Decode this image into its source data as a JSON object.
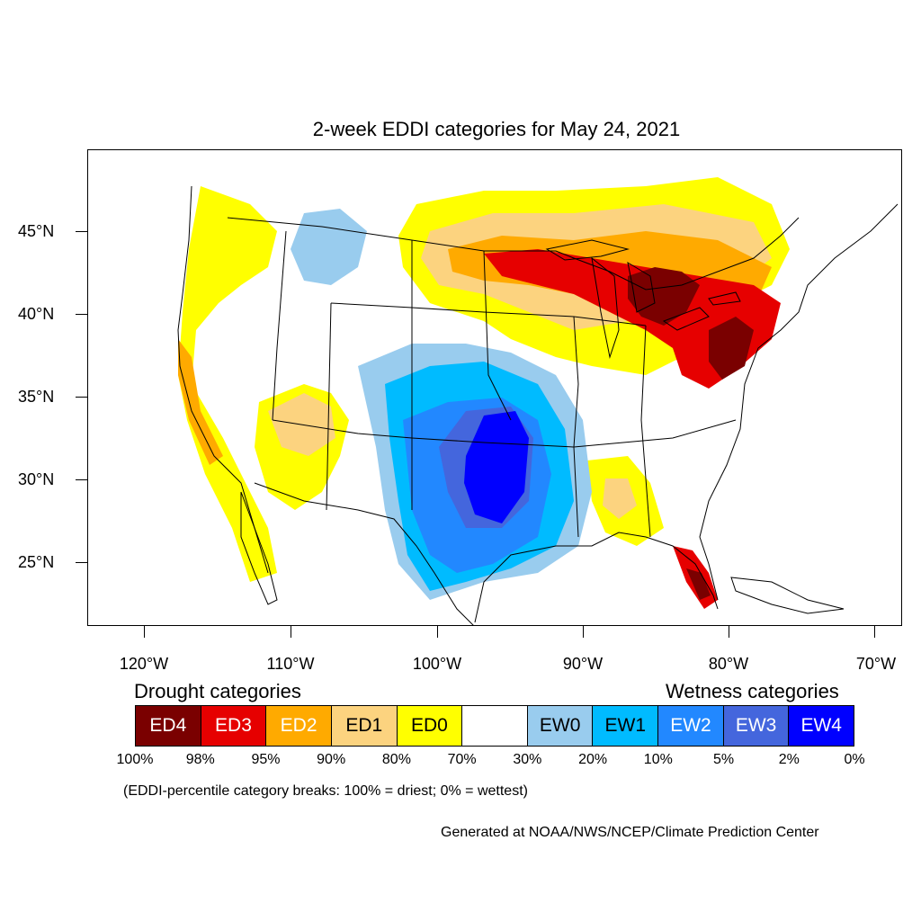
{
  "title": "2-week EDDI categories for May 24, 2021",
  "axes": {
    "lat_labels": [
      "45°N",
      "40°N",
      "35°N",
      "30°N",
      "25°N"
    ],
    "lon_labels": [
      "120°W",
      "110°W",
      "100°W",
      "90°W",
      "80°W",
      "70°W"
    ]
  },
  "legend": {
    "drought_heading": "Drought categories",
    "wetness_heading": "Wetness categories",
    "categories": [
      {
        "label": "ED4",
        "color": "#7a0000",
        "text_color": "#ffffff"
      },
      {
        "label": "ED3",
        "color": "#e60000",
        "text_color": "#ffffff"
      },
      {
        "label": "ED2",
        "color": "#ffaa00",
        "text_color": "#ffffff"
      },
      {
        "label": "ED1",
        "color": "#fcd37f",
        "text_color": "#000000"
      },
      {
        "label": "ED0",
        "color": "#ffff00",
        "text_color": "#000000"
      },
      {
        "label": "",
        "color": "#ffffff",
        "text_color": "#000000"
      },
      {
        "label": "EW0",
        "color": "#99ccee",
        "text_color": "#000000"
      },
      {
        "label": "EW1",
        "color": "#00bbff",
        "text_color": "#000000"
      },
      {
        "label": "EW2",
        "color": "#2288ff",
        "text_color": "#ffffff"
      },
      {
        "label": "EW3",
        "color": "#4466dd",
        "text_color": "#ffffff"
      },
      {
        "label": "EW4",
        "color": "#0000ff",
        "text_color": "#ffffff"
      }
    ],
    "breaks": [
      "100%",
      "98%",
      "95%",
      "90%",
      "80%",
      "70%",
      "30%",
      "20%",
      "10%",
      "5%",
      "2%",
      "0%"
    ]
  },
  "note": "(EDDI-percentile category breaks: 100% = driest; 0% = wettest)",
  "credit": "Generated at NOAA/NWS/NCEP/Climate Prediction Center"
}
